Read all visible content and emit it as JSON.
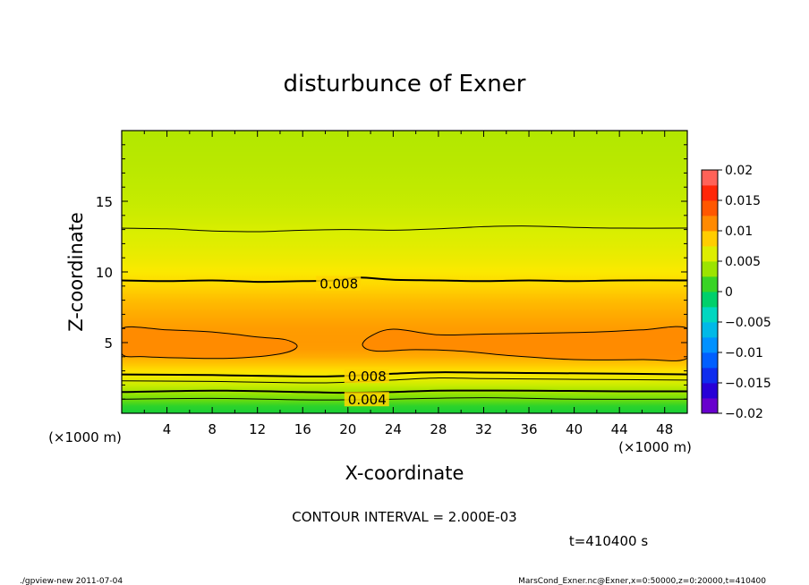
{
  "chart_data": {
    "type": "heatmap",
    "title": "disturbunce of Exner",
    "xlabel": "X-coordinate",
    "ylabel": "Z-coordinate",
    "x_unit_left": "(×1000 m)",
    "x_unit_right": "(×1000 m)",
    "xlim": [
      0,
      50
    ],
    "ylim": [
      0,
      20
    ],
    "x_ticks": [
      4,
      8,
      12,
      16,
      20,
      24,
      28,
      32,
      36,
      40,
      44,
      48
    ],
    "x_tick_labels": [
      "4",
      "8",
      "12",
      "16",
      "20",
      "24",
      "28",
      "32",
      "36",
      "40",
      "44",
      "48"
    ],
    "y_ticks": [
      5,
      10,
      15
    ],
    "y_tick_labels": [
      "5",
      "10",
      "15"
    ],
    "field_profile": {
      "z": [
        0,
        0.5,
        1,
        1.5,
        2,
        2.5,
        3,
        3.5,
        4,
        4.5,
        5,
        6,
        7,
        8,
        9,
        10,
        11,
        12,
        13,
        14,
        15,
        16,
        17,
        18,
        19,
        20
      ],
      "value": [
        0.0005,
        0.001,
        0.0025,
        0.004,
        0.0055,
        0.007,
        0.0082,
        0.009,
        0.0097,
        0.0102,
        0.0104,
        0.0102,
        0.0097,
        0.0092,
        0.0085,
        0.0078,
        0.007,
        0.0064,
        0.006,
        0.0056,
        0.0053,
        0.0051,
        0.0049,
        0.0048,
        0.0047,
        0.0046
      ]
    },
    "contours": [
      {
        "level": 0.002,
        "points": [
          [
            0,
            1.0
          ],
          [
            8,
            1.05
          ],
          [
            16,
            0.95
          ],
          [
            20,
            0.95
          ],
          [
            24,
            1.0
          ],
          [
            32,
            1.1
          ],
          [
            40,
            1.0
          ],
          [
            50,
            1.0
          ]
        ]
      },
      {
        "level": 0.004,
        "points": [
          [
            0,
            1.5
          ],
          [
            8,
            1.6
          ],
          [
            16,
            1.5
          ],
          [
            20,
            1.45
          ],
          [
            24,
            1.5
          ],
          [
            28,
            1.6
          ],
          [
            36,
            1.6
          ],
          [
            44,
            1.55
          ],
          [
            50,
            1.55
          ]
        ],
        "label": "0.004",
        "label_at": [
          20,
          1.0
        ]
      },
      {
        "level": 0.006,
        "points": [
          [
            0,
            2.3
          ],
          [
            8,
            2.25
          ],
          [
            16,
            2.15
          ],
          [
            20,
            2.2
          ],
          [
            24,
            2.35
          ],
          [
            28,
            2.5
          ],
          [
            32,
            2.45
          ],
          [
            40,
            2.4
          ],
          [
            50,
            2.35
          ]
        ]
      },
      {
        "level": 0.008,
        "points": [
          [
            0,
            2.75
          ],
          [
            8,
            2.7
          ],
          [
            16,
            2.6
          ],
          [
            20,
            2.65
          ],
          [
            24,
            2.8
          ],
          [
            28,
            2.9
          ],
          [
            36,
            2.85
          ],
          [
            44,
            2.8
          ],
          [
            50,
            2.75
          ]
        ],
        "label": "0.008",
        "label_at": [
          20,
          2.65
        ]
      },
      {
        "level": 0.008,
        "points": [
          [
            0,
            9.4
          ],
          [
            4,
            9.35
          ],
          [
            8,
            9.4
          ],
          [
            12,
            9.3
          ],
          [
            16,
            9.35
          ],
          [
            19,
            9.4
          ],
          [
            21,
            9.6
          ],
          [
            24,
            9.45
          ],
          [
            28,
            9.4
          ],
          [
            32,
            9.35
          ],
          [
            36,
            9.4
          ],
          [
            40,
            9.35
          ],
          [
            44,
            9.4
          ],
          [
            50,
            9.4
          ]
        ],
        "label": "0.008",
        "label_at": [
          17.5,
          9.2
        ]
      },
      {
        "level": 0.006,
        "points": [
          [
            0,
            13.1
          ],
          [
            4,
            13.05
          ],
          [
            8,
            12.9
          ],
          [
            12,
            12.85
          ],
          [
            16,
            12.95
          ],
          [
            20,
            13.0
          ],
          [
            24,
            12.95
          ],
          [
            28,
            13.05
          ],
          [
            32,
            13.2
          ],
          [
            36,
            13.25
          ],
          [
            40,
            13.15
          ],
          [
            44,
            13.1
          ],
          [
            50,
            13.1
          ]
        ]
      }
    ],
    "closed_contours": [
      {
        "level": 0.01,
        "points": [
          [
            0,
            6.0
          ],
          [
            4,
            5.9
          ],
          [
            8,
            5.75
          ],
          [
            12,
            5.4
          ],
          [
            14.5,
            5.2
          ],
          [
            15.5,
            4.7
          ],
          [
            14,
            4.2
          ],
          [
            10,
            3.9
          ],
          [
            6,
            3.9
          ],
          [
            2,
            4.0
          ],
          [
            0,
            4.2
          ]
        ]
      },
      {
        "level": 0.01,
        "points": [
          [
            50,
            6.0
          ],
          [
            46,
            5.9
          ],
          [
            42,
            5.75
          ],
          [
            36,
            5.65
          ],
          [
            32,
            5.6
          ],
          [
            28,
            5.55
          ],
          [
            24,
            5.95
          ],
          [
            22,
            5.45
          ],
          [
            21.3,
            4.8
          ],
          [
            22.5,
            4.4
          ],
          [
            26,
            4.5
          ],
          [
            30,
            4.4
          ],
          [
            34,
            4.1
          ],
          [
            40,
            3.8
          ],
          [
            46,
            3.8
          ],
          [
            50,
            3.9
          ]
        ]
      }
    ],
    "colorbar": {
      "range": [
        -0.02,
        0.02
      ],
      "tick_values": [
        0.02,
        0.015,
        0.01,
        0.005,
        0,
        -0.005,
        -0.01,
        -0.015,
        -0.02
      ],
      "tick_labels": [
        "0.02",
        "0.015",
        "0.01",
        "0.005",
        "0",
        "−0.005",
        "−0.01",
        "−0.015",
        "−0.02"
      ],
      "stops": [
        {
          "v": -0.02,
          "c": "#8800c8"
        },
        {
          "v": -0.016,
          "c": "#2200d8"
        },
        {
          "v": -0.012,
          "c": "#0050ff"
        },
        {
          "v": -0.008,
          "c": "#00a0ff"
        },
        {
          "v": -0.004,
          "c": "#00d8c8"
        },
        {
          "v": 0,
          "c": "#00cc40"
        },
        {
          "v": 0.003,
          "c": "#88e000"
        },
        {
          "v": 0.006,
          "c": "#d8ee00"
        },
        {
          "v": 0.008,
          "c": "#ffe800"
        },
        {
          "v": 0.01,
          "c": "#ffa000"
        },
        {
          "v": 0.013,
          "c": "#ff6a00"
        },
        {
          "v": 0.016,
          "c": "#ff2000"
        },
        {
          "v": 0.02,
          "c": "#ff8080"
        }
      ]
    }
  },
  "footer": {
    "contour_interval": "CONTOUR INTERVAL = 2.000E-03",
    "time": "t=410400 s",
    "left_note": "./gpview-new  2011-07-04",
    "right_note": "MarsCond_Exner.nc@Exner,x=0:50000,z=0:20000,t=410400"
  }
}
